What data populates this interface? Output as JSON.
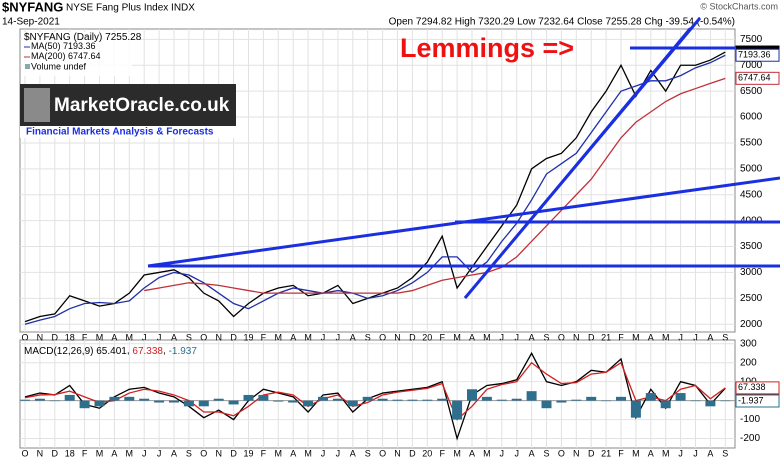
{
  "header": {
    "symbol": "$NYFANG",
    "name": "NYSE Fang Plus Index INDX",
    "date": "14-Sep-2021",
    "quote": "Open 7294.82 High 7320.29 Low 7232.64 Close 7255.28 Chg -39.54 (-0.54%)",
    "credit": "© StockCharts.com",
    "volume": "Volume undef",
    "logo": "MarketOracle.co.uk",
    "logo_sub": "Financial Markets Analysis & Forecasts",
    "annotation": "Lemmings =>"
  },
  "chart_data": [
    {
      "type": "line",
      "title": "$NYFANG (Daily)",
      "categories": [
        "O",
        "N",
        "D",
        "18",
        "F",
        "M",
        "A",
        "M",
        "J",
        "J",
        "A",
        "S",
        "O",
        "N",
        "D",
        "19",
        "F",
        "M",
        "A",
        "M",
        "J",
        "J",
        "A",
        "S",
        "O",
        "N",
        "D",
        "20",
        "F",
        "M",
        "A",
        "M",
        "J",
        "J",
        "A",
        "S",
        "O",
        "N",
        "D",
        "21",
        "F",
        "M",
        "A",
        "M",
        "J",
        "J",
        "A",
        "S"
      ],
      "series": [
        {
          "name": "$NYFANG (Daily)",
          "color": "#000000",
          "values": [
            2050,
            2150,
            2200,
            2550,
            2450,
            2350,
            2400,
            2600,
            2950,
            3000,
            3050,
            2900,
            2600,
            2450,
            2150,
            2400,
            2600,
            2700,
            2750,
            2550,
            2600,
            2750,
            2400,
            2500,
            2600,
            2700,
            2900,
            3200,
            3700,
            2700,
            3100,
            3500,
            3900,
            4300,
            5000,
            5200,
            5300,
            5600,
            6100,
            6500,
            7000,
            6400,
            6900,
            6500,
            7000,
            7000,
            7100,
            7255.28
          ]
        },
        {
          "name": "MA(50)",
          "color": "#1f2fa8",
          "values": [
            2000,
            2080,
            2150,
            2300,
            2400,
            2420,
            2400,
            2450,
            2700,
            2900,
            3000,
            2950,
            2800,
            2600,
            2400,
            2300,
            2450,
            2600,
            2700,
            2650,
            2600,
            2650,
            2600,
            2500,
            2550,
            2650,
            2800,
            3000,
            3300,
            3300,
            3000,
            3200,
            3600,
            3950,
            4400,
            4900,
            5100,
            5300,
            5700,
            6100,
            6500,
            6600,
            6700,
            6700,
            6800,
            6950,
            7050,
            7193.36
          ]
        },
        {
          "name": "MA(200)",
          "color": "#c0303a",
          "values": [
            null,
            null,
            null,
            null,
            null,
            null,
            null,
            null,
            2650,
            2700,
            2750,
            2800,
            2780,
            2750,
            2700,
            2650,
            2600,
            2600,
            2600,
            2600,
            2600,
            2600,
            2600,
            2600,
            2600,
            2600,
            2650,
            2750,
            2850,
            2900,
            2950,
            3000,
            3100,
            3300,
            3600,
            3900,
            4200,
            4500,
            4800,
            5200,
            5600,
            5900,
            6100,
            6300,
            6450,
            6550,
            6650,
            6747.64
          ]
        }
      ],
      "ylim": [
        1850,
        7700
      ],
      "yticks": [
        2000,
        2500,
        3000,
        3500,
        4000,
        4500,
        5000,
        5500,
        6000,
        6500,
        7000,
        7500
      ],
      "grid": true
    },
    {
      "type": "line",
      "title": "MACD(12,26,9)",
      "series": [
        {
          "name": "MACD",
          "color": "#000000",
          "values": [
            20,
            40,
            30,
            80,
            -20,
            -40,
            20,
            60,
            70,
            40,
            20,
            -30,
            -90,
            -50,
            -100,
            0,
            60,
            40,
            20,
            -60,
            30,
            40,
            -60,
            10,
            40,
            50,
            60,
            70,
            100,
            -200,
            30,
            80,
            90,
            110,
            250,
            100,
            80,
            100,
            160,
            150,
            220,
            -90,
            60,
            -40,
            100,
            80,
            -20,
            65.401
          ]
        },
        {
          "name": "Signal",
          "color": "#d02020",
          "values": [
            15,
            30,
            32,
            50,
            20,
            -10,
            0,
            40,
            60,
            50,
            30,
            0,
            -60,
            -60,
            -80,
            -30,
            30,
            45,
            30,
            -30,
            10,
            30,
            -30,
            -10,
            30,
            45,
            55,
            65,
            90,
            -100,
            -30,
            60,
            85,
            100,
            200,
            140,
            90,
            95,
            140,
            150,
            200,
            0,
            20,
            0,
            60,
            80,
            10,
            67.338
          ]
        },
        {
          "name": "Histogram",
          "type": "bar",
          "color": "#2e6f8e",
          "values": [
            5,
            10,
            -2,
            30,
            -40,
            -30,
            20,
            20,
            10,
            -10,
            -10,
            -30,
            -30,
            10,
            -20,
            30,
            30,
            -5,
            -10,
            -30,
            20,
            10,
            -30,
            20,
            10,
            5,
            5,
            5,
            10,
            -100,
            60,
            20,
            5,
            10,
            50,
            -40,
            -10,
            5,
            20,
            0,
            20,
            -90,
            40,
            -40,
            40,
            0,
            -30,
            -1.937
          ]
        }
      ],
      "ylim": [
        -250,
        320
      ],
      "yticks": [
        -200,
        -100,
        100,
        200,
        300
      ],
      "grid": true
    }
  ]
}
